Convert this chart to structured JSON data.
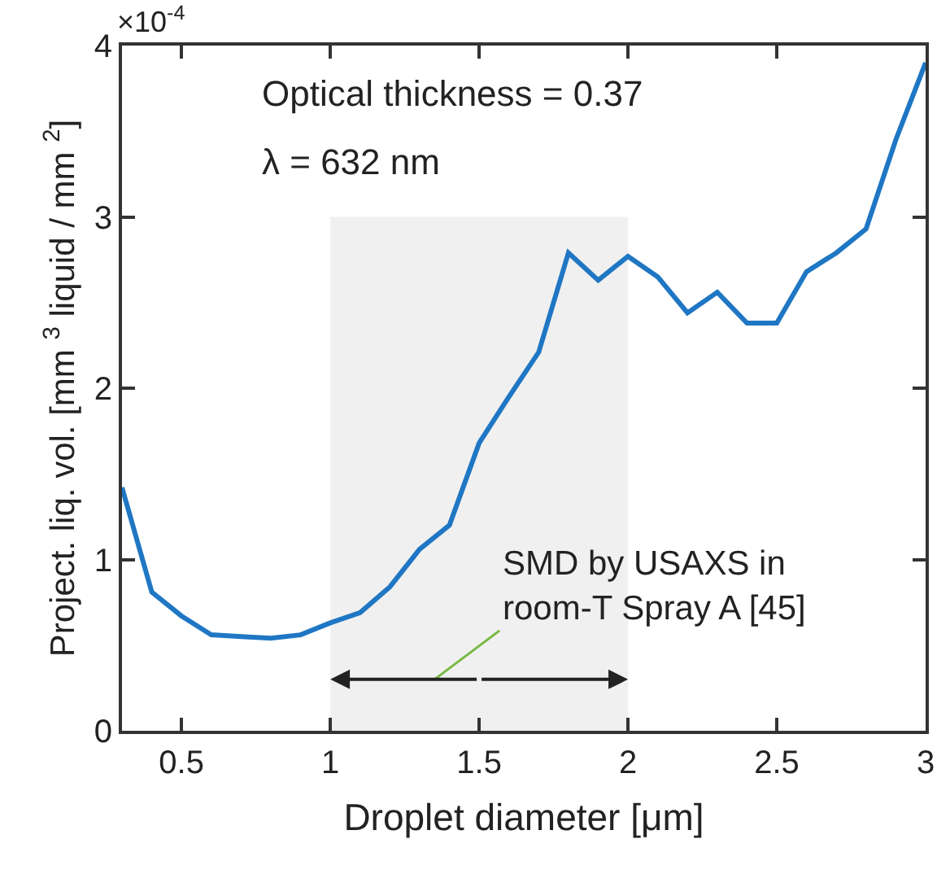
{
  "chart_data": {
    "type": "line",
    "xlabel": "Droplet diameter [μm]",
    "ylabel": "Project. liq. vol. [mm $^{3}$ liquid / mm $^{2}$]",
    "x": [
      0.3,
      0.4,
      0.5,
      0.6,
      0.7,
      0.8,
      0.9,
      1.0,
      1.1,
      1.2,
      1.3,
      1.4,
      1.5,
      1.6,
      1.7,
      1.8,
      1.9,
      2.0,
      2.1,
      2.2,
      2.3,
      2.4,
      2.5,
      2.6,
      2.7,
      2.8,
      2.9,
      3.0
    ],
    "series": [
      {
        "color": "#1f77c4",
        "values": [
          1.42,
          0.81,
          0.67,
          0.56,
          0.55,
          0.54,
          0.56,
          0.63,
          0.69,
          0.84,
          1.06,
          1.2,
          1.68,
          1.95,
          2.21,
          2.79,
          2.63,
          2.77,
          2.65,
          2.44,
          2.56,
          2.38,
          2.38,
          2.68,
          2.79,
          2.93,
          3.45,
          3.9
        ]
      }
    ],
    "xlim": [
      0.3,
      3
    ],
    "xticks": [
      0.5,
      1,
      1.5,
      2,
      2.5,
      3
    ],
    "ylim": [
      0,
      4
    ],
    "yticks": [
      0,
      1,
      2,
      3,
      4
    ],
    "bands": [
      {
        "axis": "x",
        "from": 1,
        "to": 2,
        "color": "#f0f0f0"
      }
    ],
    "annotations": [
      "×10$^{-4}$",
      "Optical thickness = 0.37",
      "λ = 632 nm",
      "SMD by USAXS in room-T Spray A [45]"
    ],
    "grid": false,
    "marker": "none",
    "line_style": "solid"
  }
}
